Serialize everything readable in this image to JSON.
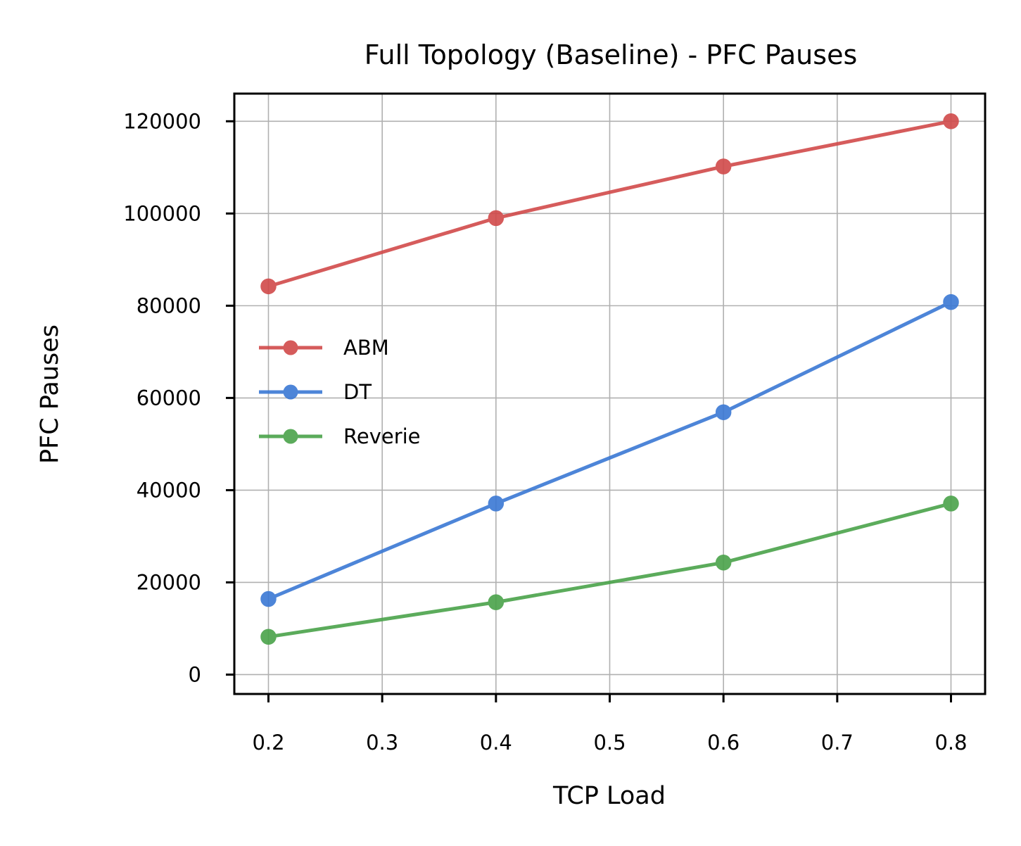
{
  "chart_data": {
    "type": "line",
    "title": "Full Topology (Baseline) - PFC Pauses",
    "xlabel": "TCP Load",
    "ylabel": "PFC Pauses",
    "x": [
      0.2,
      0.4,
      0.6,
      0.8
    ],
    "xticks": [
      "0.2",
      "0.3",
      "0.4",
      "0.5",
      "0.6",
      "0.7",
      "0.8"
    ],
    "xtick_values": [
      0.2,
      0.3,
      0.4,
      0.5,
      0.6,
      0.7,
      0.8
    ],
    "yticks": [
      "0",
      "20000",
      "40000",
      "60000",
      "80000",
      "100000",
      "120000"
    ],
    "ytick_values": [
      0,
      20000,
      40000,
      60000,
      80000,
      100000,
      120000
    ],
    "xlim": [
      0.17,
      0.83
    ],
    "ylim": [
      -4200,
      126000
    ],
    "grid": true,
    "legend_position": "center-left",
    "series": [
      {
        "name": "ABM",
        "color": "#d14a4a",
        "values": [
          84200,
          99000,
          110200,
          120000
        ]
      },
      {
        "name": "DT",
        "color": "#3a78d4",
        "values": [
          16400,
          37100,
          56900,
          80800
        ]
      },
      {
        "name": "Reverie",
        "color": "#4aa34a",
        "values": [
          8200,
          15700,
          24300,
          37100
        ]
      }
    ]
  }
}
